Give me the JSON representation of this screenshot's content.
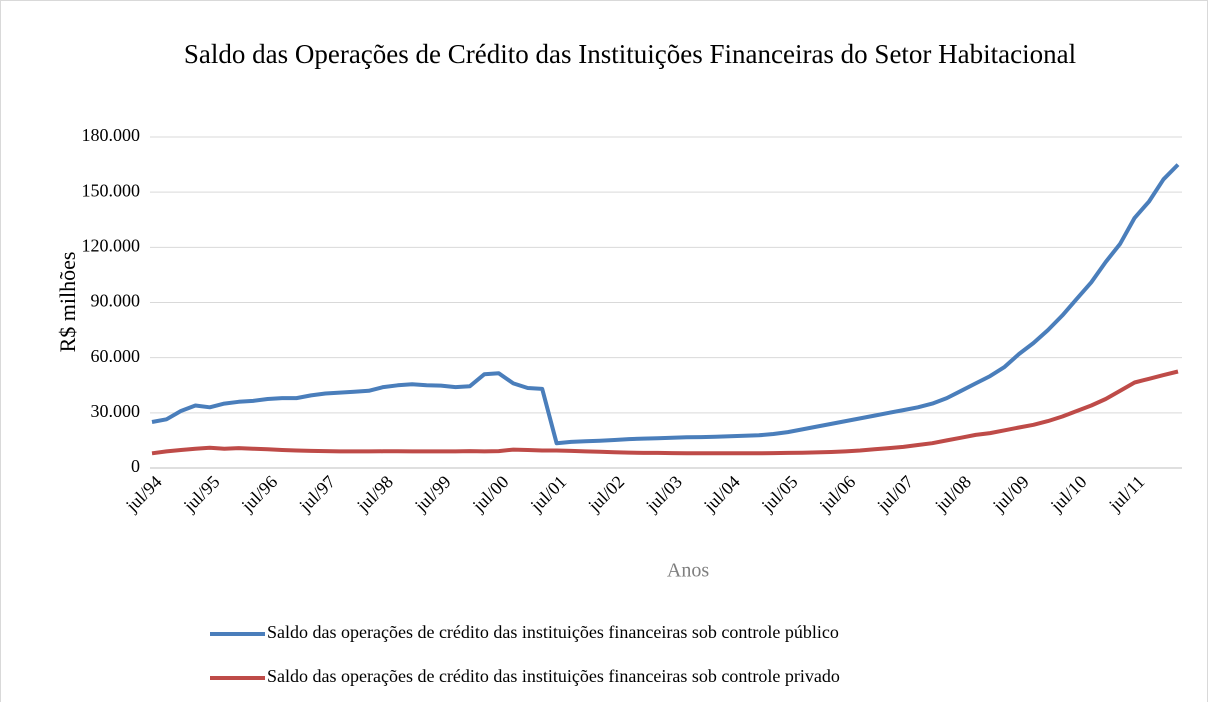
{
  "chart_data": {
    "type": "line",
    "title": "Saldo das Operações de Crédito das Instituições Financeiras do Setor Habitacional",
    "y_label": "R$ milhões",
    "x_label": "Anos",
    "categories": [
      "jul/94",
      null,
      null,
      null,
      "jul/95",
      null,
      null,
      null,
      "jul/96",
      null,
      null,
      null,
      "jul/97",
      null,
      null,
      null,
      "jul/98",
      null,
      null,
      null,
      "jul/99",
      null,
      null,
      null,
      "jul/00",
      null,
      null,
      null,
      "jul/01",
      null,
      null,
      null,
      "jul/02",
      null,
      null,
      null,
      "jul/03",
      null,
      null,
      null,
      "jul/04",
      null,
      null,
      null,
      "jul/05",
      null,
      null,
      null,
      "jul/06",
      null,
      null,
      null,
      "jul/07",
      null,
      null,
      null,
      "jul/08",
      null,
      null,
      null,
      "jul/09",
      null,
      null,
      null,
      "jul/10",
      null,
      null,
      null,
      "jul/11",
      null,
      null,
      null
    ],
    "series": [
      {
        "name": "Saldo das operações de crédito das instituições financeiras sob controle público",
        "color": "#4a7ebb",
        "values": [
          25000,
          26500,
          31000,
          34000,
          33000,
          35000,
          36000,
          36500,
          37500,
          38000,
          38000,
          39500,
          40500,
          41000,
          41500,
          42000,
          44000,
          45000,
          45500,
          45000,
          44800,
          44000,
          44500,
          51000,
          51500,
          46000,
          43500,
          43000,
          13500,
          14200,
          14500,
          14800,
          15200,
          15700,
          16000,
          16200,
          16500,
          16700,
          16800,
          17000,
          17300,
          17500,
          17800,
          18500,
          19500,
          21000,
          22500,
          24000,
          25500,
          27000,
          28500,
          30000,
          31500,
          33000,
          35000,
          38000,
          42000,
          46000,
          50000,
          55000,
          62000,
          68000,
          75000,
          83000,
          92000,
          101000,
          112000,
          122000,
          136000,
          145000,
          157000,
          165000
        ]
      },
      {
        "name": "Saldo das operações de crédito das instituições financeiras sob controle privado",
        "color": "#be4b48",
        "values": [
          8000,
          9000,
          9800,
          10500,
          11000,
          10500,
          10800,
          10500,
          10200,
          9800,
          9500,
          9300,
          9200,
          9000,
          9000,
          9000,
          9100,
          9100,
          9000,
          9000,
          9000,
          9000,
          9200,
          9000,
          9200,
          10000,
          9800,
          9500,
          9500,
          9300,
          9000,
          8800,
          8600,
          8400,
          8200,
          8200,
          8100,
          8000,
          8000,
          8000,
          8000,
          8000,
          8000,
          8100,
          8200,
          8300,
          8500,
          8700,
          9000,
          9500,
          10200,
          10800,
          11500,
          12500,
          13500,
          15000,
          16500,
          18000,
          19000,
          20500,
          22000,
          23500,
          25500,
          28000,
          31000,
          34000,
          37500,
          42000,
          46500,
          48500,
          50500,
          52500
        ]
      }
    ],
    "ylim": [
      0,
      180000
    ],
    "yticks": [
      0,
      {
        "value": 30000,
        "label": "30.000"
      },
      {
        "value": 60000,
        "label": "60.000"
      },
      {
        "value": 90000,
        "label": "90.000"
      },
      {
        "value": 120000,
        "label": "120.000"
      },
      {
        "value": 150000,
        "label": "150.000"
      },
      {
        "value": 180000,
        "label": "180.000"
      }
    ],
    "grid": true,
    "legend": "bottom"
  }
}
